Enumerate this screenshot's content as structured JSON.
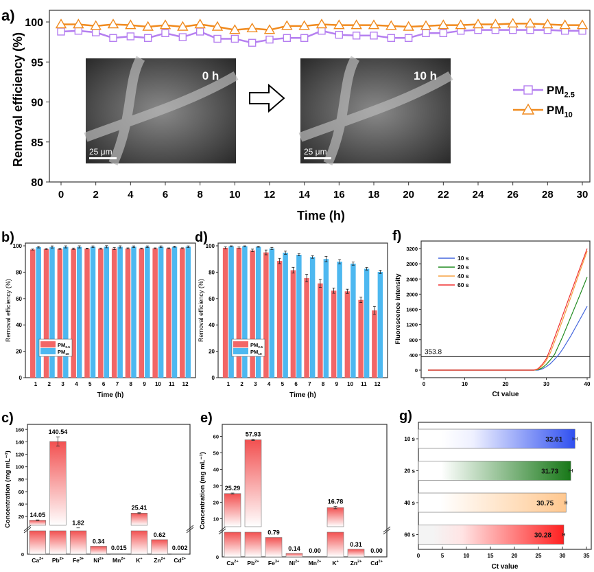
{
  "colors": {
    "pm25": "#b57ff0",
    "pm10": "#f08a1e",
    "bar_pm25": "#f26666",
    "bar_pm10": "#4db8f0",
    "ion_bar": "#f04848",
    "f_10s": "#4466dd",
    "f_20s": "#1e8a1e",
    "f_40s": "#f5a040",
    "f_60s": "#f03030",
    "g_10s": "#3050f0",
    "g_20s": "#187818",
    "g_40s": "#ffc890",
    "g_60s": "#ff2020"
  },
  "chart_data": [
    {
      "panel": "a)",
      "type": "line",
      "xlabel": "Time (h)",
      "ylabel": "Removal efficiency (%)",
      "xlim": [
        0,
        30
      ],
      "ylim": [
        80,
        100
      ],
      "xticks": [
        "0",
        "2",
        "4",
        "6",
        "8",
        "10",
        "12",
        "14",
        "16",
        "18",
        "20",
        "22",
        "24",
        "26",
        "28",
        "30"
      ],
      "yticks": [
        "80",
        "85",
        "90",
        "95",
        "100"
      ],
      "x": [
        0,
        1,
        2,
        3,
        4,
        5,
        6,
        7,
        8,
        9,
        10,
        11,
        12,
        13,
        14,
        15,
        16,
        17,
        18,
        19,
        20,
        21,
        22,
        23,
        24,
        25,
        26,
        27,
        28,
        29,
        30
      ],
      "series": [
        {
          "name": "PM",
          "sub": "2.5",
          "marker": "square",
          "values": [
            98.8,
            98.9,
            98.7,
            98.0,
            98.2,
            98.0,
            98.6,
            98.1,
            98.8,
            97.9,
            97.9,
            97.4,
            97.8,
            98.0,
            98.0,
            98.9,
            98.4,
            98.3,
            98.3,
            98.0,
            98.0,
            98.6,
            98.6,
            98.9,
            99.0,
            99.0,
            99.0,
            99.0,
            99.0,
            98.9,
            98.9
          ]
        },
        {
          "name": "PM",
          "sub": "10",
          "marker": "triangle",
          "values": [
            99.7,
            99.7,
            99.5,
            99.7,
            99.6,
            99.4,
            99.6,
            99.4,
            99.7,
            99.4,
            99.0,
            99.2,
            99.0,
            99.5,
            99.5,
            99.7,
            99.6,
            99.6,
            99.6,
            99.5,
            99.4,
            99.5,
            99.6,
            99.6,
            99.7,
            99.7,
            99.8,
            99.8,
            99.7,
            99.6,
            99.6
          ]
        }
      ],
      "insets": [
        {
          "label": "0 h",
          "scale": "25 μm"
        },
        {
          "label": "10 h",
          "scale": "25 μm"
        }
      ]
    },
    {
      "panel": "b)",
      "type": "bar",
      "xlabel": "Time (h)",
      "ylabel": "Removal efficiency (%)",
      "ylim": [
        0,
        100
      ],
      "yticks": [
        "0",
        "20",
        "40",
        "60",
        "80",
        "100"
      ],
      "categories": [
        "1",
        "2",
        "3",
        "4",
        "5",
        "6",
        "7",
        "8",
        "9",
        "10",
        "11",
        "12"
      ],
      "series": [
        {
          "name": "PM",
          "sub": "2.5",
          "values": [
            97.2,
            97.6,
            97.7,
            97.8,
            97.9,
            97.9,
            97.9,
            98.0,
            98.0,
            98.1,
            98.1,
            98.2
          ],
          "errors": [
            0.4,
            0.4,
            0.4,
            0.5,
            0.3,
            0.4,
            0.8,
            0.4,
            0.3,
            0.3,
            0.3,
            0.3
          ]
        },
        {
          "name": "PM",
          "sub": "10",
          "values": [
            99.0,
            99.1,
            99.2,
            99.2,
            99.3,
            99.3,
            99.2,
            99.3,
            99.3,
            99.3,
            99.3,
            99.3
          ],
          "errors": [
            0.6,
            0.8,
            0.8,
            0.8,
            0.6,
            0.8,
            0.8,
            0.6,
            0.6,
            0.6,
            0.4,
            0.6
          ]
        }
      ]
    },
    {
      "panel": "d)",
      "type": "bar",
      "xlabel": "Time (h)",
      "ylabel": "Removal efficiency (%)",
      "ylim": [
        0,
        100
      ],
      "yticks": [
        "0",
        "20",
        "40",
        "60",
        "80",
        "100"
      ],
      "categories": [
        "1",
        "2",
        "3",
        "4",
        "5",
        "6",
        "7",
        "8",
        "9",
        "10",
        "11",
        "12"
      ],
      "series": [
        {
          "name": "PM",
          "sub": "2.5",
          "values": [
            98.5,
            98.5,
            96.5,
            95.0,
            88.5,
            81.5,
            75.5,
            71.5,
            66.0,
            65.5,
            59.0,
            51.0
          ],
          "errors": [
            0.8,
            0.6,
            1.0,
            1.8,
            2.0,
            2.2,
            2.8,
            3.0,
            2.0,
            1.6,
            2.0,
            3.0
          ]
        },
        {
          "name": "PM",
          "sub": "10",
          "values": [
            99.7,
            99.7,
            99.3,
            98.0,
            94.8,
            93.2,
            91.5,
            90.0,
            88.0,
            86.5,
            82.6,
            80.2
          ],
          "errors": [
            0.3,
            0.3,
            0.3,
            0.8,
            1.2,
            0.8,
            1.0,
            2.0,
            1.6,
            1.2,
            1.0,
            1.2
          ]
        }
      ]
    },
    {
      "panel": "f)",
      "type": "line",
      "xlabel": "Ct value",
      "ylabel": "Fluorescence intensity",
      "xlim": [
        0,
        40
      ],
      "ylim": [
        -200,
        3400
      ],
      "xticks": [
        "0",
        "10",
        "20",
        "30",
        "40"
      ],
      "yticks": [
        "0",
        "400",
        "800",
        "1200",
        "1600",
        "2000",
        "2400",
        "2800",
        "3200"
      ],
      "threshold": {
        "value": 353.8,
        "label": "353.8"
      },
      "series": [
        {
          "name": "10 s",
          "x": [
            1,
            28,
            29,
            30,
            31,
            32,
            33,
            34,
            36,
            38,
            40
          ],
          "values": [
            0,
            0,
            30,
            90,
            170,
            280,
            400,
            550,
            900,
            1290,
            1680
          ]
        },
        {
          "name": "20 s",
          "x": [
            1,
            27,
            28,
            29,
            30,
            31,
            32,
            34,
            36,
            38,
            40
          ],
          "values": [
            0,
            0,
            10,
            60,
            150,
            270,
            410,
            880,
            1400,
            1920,
            2450
          ]
        },
        {
          "name": "40 s",
          "x": [
            1,
            27,
            28,
            29,
            30,
            31,
            32,
            34,
            36,
            38,
            40
          ],
          "values": [
            0,
            0,
            25,
            110,
            250,
            460,
            740,
            1320,
            1920,
            2530,
            3130
          ]
        },
        {
          "name": "60 s",
          "x": [
            1,
            27,
            28,
            29,
            30,
            31,
            32,
            34,
            36,
            38,
            40
          ],
          "values": [
            0,
            0,
            40,
            150,
            300,
            560,
            850,
            1440,
            2030,
            2620,
            3200
          ]
        }
      ]
    },
    {
      "panel": "c)",
      "type": "bar",
      "ylabel": "Concentration (mg mL⁻¹)",
      "broken_axis": true,
      "ylim_lower": [
        0,
        1
      ],
      "ylim_upper": [
        1.5,
        168
      ],
      "yticks_lower": [
        "0"
      ],
      "yticks_upper": [
        "20",
        "40",
        "60",
        "80",
        "100",
        "120",
        "140",
        "160"
      ],
      "categories": [
        "Ca",
        "Pb",
        "Fe",
        "Ni",
        "Mn",
        "K",
        "Zn",
        "Cd"
      ],
      "charges": [
        "2+",
        "2+",
        "3+",
        "2+",
        "2+",
        "+",
        "2+",
        "2+"
      ],
      "values": [
        14.05,
        140.54,
        1.82,
        0.34,
        0.015,
        25.41,
        0.62,
        0.002
      ],
      "labels": [
        "14.05",
        "140.54",
        "1.82",
        "0.34",
        "0.015",
        "25.41",
        "0.62",
        "0.002"
      ],
      "errors": [
        0.5,
        7.5,
        0,
        0.05,
        0,
        0.8,
        0.02,
        0
      ]
    },
    {
      "panel": "e)",
      "type": "bar",
      "ylabel": "Concentration (mg mL⁻¹)",
      "broken_axis": true,
      "ylim_lower": [
        0,
        1
      ],
      "ylim_upper": [
        3.5,
        67.3
      ],
      "yticks_lower": [
        "0"
      ],
      "yticks_upper": [
        "10",
        "20",
        "30",
        "40",
        "50",
        "60"
      ],
      "categories": [
        "Ca",
        "Pb",
        "Fe",
        "Ni",
        "Mn",
        "K",
        "Zn",
        "Cd"
      ],
      "charges": [
        "2+",
        "2+",
        "3+",
        "2+",
        "2+",
        "+",
        "2+",
        "2+"
      ],
      "values": [
        25.29,
        57.93,
        0.79,
        0.14,
        0.0,
        16.78,
        0.31,
        0.0
      ],
      "labels": [
        "25.29",
        "57.93",
        "0.79",
        "0.14",
        "0.00",
        "16.78",
        "0.31",
        "0.00"
      ],
      "errors": [
        0.3,
        0.4,
        0.02,
        0.005,
        0,
        0.7,
        0.01,
        0
      ]
    },
    {
      "panel": "g)",
      "type": "bar",
      "orientation": "horizontal",
      "xlabel": "Ct value",
      "xlim": [
        0,
        35
      ],
      "xticks": [
        "0",
        "5",
        "10",
        "15",
        "20",
        "25",
        "30",
        "35"
      ],
      "categories": [
        "10 s",
        "20 s",
        "40 s",
        "60 s"
      ],
      "values": [
        32.61,
        31.73,
        30.75,
        30.28
      ],
      "labels": [
        "32.61",
        "31.73",
        "30.75",
        "30.28"
      ],
      "errors": [
        0.45,
        0.35,
        0.2,
        0.2
      ]
    }
  ]
}
